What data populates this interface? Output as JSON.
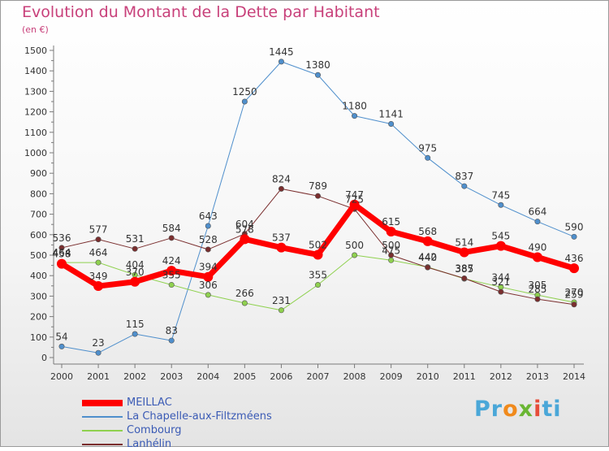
{
  "title": "Evolution du Montant de la Dette par Habitant",
  "subtitle": "(en €)",
  "logo": "Proxiti",
  "chart_data": {
    "type": "line",
    "x": [
      "2000",
      "2001",
      "2002",
      "2003",
      "2004",
      "2005",
      "2006",
      "2007",
      "2008",
      "2009",
      "2010",
      "2011",
      "2012",
      "2013",
      "2014"
    ],
    "ylim": [
      0,
      1500
    ],
    "yticks": [
      0,
      100,
      200,
      300,
      400,
      500,
      600,
      700,
      800,
      900,
      1000,
      1100,
      1200,
      1300,
      1400,
      1500
    ],
    "grid": false,
    "legend_position": "bottom-left",
    "series": [
      {
        "name": "MEILLAC",
        "color": "#ff0000",
        "width": 7,
        "marker": 6,
        "values": [
          458,
          349,
          370,
          424,
          394,
          578,
          537,
          502,
          747,
          615,
          568,
          514,
          545,
          490,
          436
        ],
        "labels": [
          "458",
          "349",
          "370",
          "424",
          "394",
          "578",
          "537",
          "502",
          "747",
          "615",
          "568",
          "514",
          "545",
          "490",
          "436"
        ]
      },
      {
        "name": "La Chapelle-aux-Filtzméens",
        "color": "#4f8fcc",
        "width": 1,
        "marker": 3.2,
        "values": [
          54,
          23,
          115,
          83,
          643,
          1250,
          1445,
          1380,
          1180,
          1141,
          975,
          837,
          745,
          664,
          590
        ],
        "labels": [
          "54",
          "23",
          "115",
          "83",
          "643",
          "1250",
          "1445",
          "1380",
          "1180",
          "1141",
          "975",
          "837",
          "745",
          "664",
          "590"
        ]
      },
      {
        "name": "Combourg",
        "color": "#8fd14f",
        "width": 1,
        "marker": 3.2,
        "values": [
          464,
          464,
          404,
          355,
          306,
          266,
          231,
          355,
          500,
          475,
          442,
          385,
          344,
          305,
          270
        ],
        "labels": [
          "464",
          "464",
          "404",
          "355",
          "306",
          "266",
          "231",
          "355",
          "500",
          "475",
          "442",
          "385",
          "344",
          "305",
          "270"
        ]
      },
      {
        "name": "Lanhélin",
        "color": "#7a2e2e",
        "width": 1,
        "marker": 3.2,
        "values": [
          536,
          577,
          531,
          584,
          528,
          604,
          824,
          789,
          725,
          500,
          440,
          387,
          321,
          285,
          259
        ],
        "labels": [
          "536",
          "577",
          "531",
          "584",
          "528",
          "604",
          "824",
          "789",
          "725",
          "500",
          "440",
          "387",
          "321",
          "285",
          "259"
        ]
      }
    ]
  }
}
